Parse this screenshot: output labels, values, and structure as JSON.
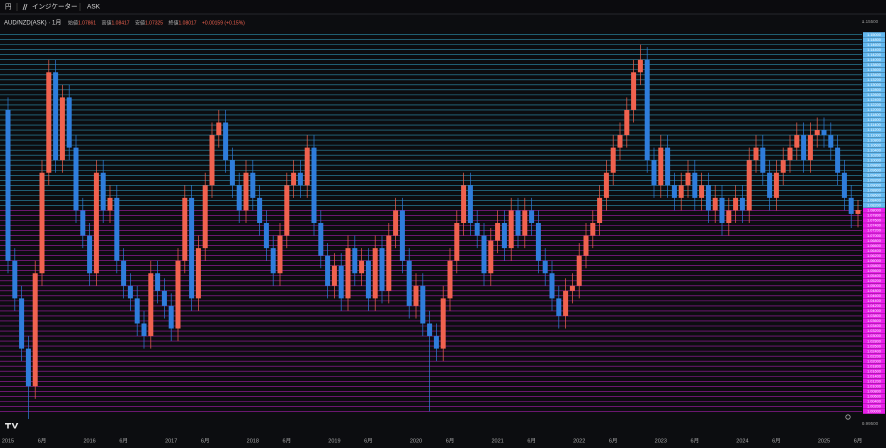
{
  "toolbar": {
    "currency": "円",
    "indicators": "インジケーター",
    "price_type": "ASK"
  },
  "chart_data": {
    "type": "candlestick",
    "title": "AUD/NZD(ASK) · 1月",
    "ohlc_labels": [
      "始値",
      "高値",
      "安値",
      "終値"
    ],
    "change": "+0.00159 (+0.15%)",
    "up_color": "#f0624f",
    "down_color": "#2f7ddb",
    "line_color_above": "#2b8fae",
    "line_color_below": "#a21ea8",
    "label_color_above": "#62b8ef",
    "label_color_below": "#e81ee8",
    "categories": [
      "2015",
      null,
      null,
      null,
      null,
      "6月",
      null,
      null,
      null,
      null,
      null,
      null,
      "2016",
      null,
      null,
      null,
      null,
      "6月",
      null,
      null,
      null,
      null,
      null,
      null,
      "2017",
      null,
      null,
      null,
      null,
      "6月",
      null,
      null,
      null,
      null,
      null,
      null,
      "2018",
      null,
      null,
      null,
      null,
      "6月",
      null,
      null,
      null,
      null,
      null,
      null,
      "2019",
      null,
      null,
      null,
      null,
      "6月",
      null,
      null,
      null,
      null,
      null,
      null,
      "2020",
      null,
      null,
      null,
      null,
      "6月",
      null,
      null,
      null,
      null,
      null,
      null,
      "2021",
      null,
      null,
      null,
      null,
      "6月",
      null,
      null,
      null,
      null,
      null,
      null,
      "2022",
      null,
      null,
      null,
      null,
      "6月",
      null,
      null,
      null,
      null,
      null,
      null,
      "2023",
      null,
      null,
      null,
      null,
      "6月",
      null,
      null,
      null,
      null,
      null,
      null,
      "2024",
      null,
      null,
      null,
      null,
      "6月",
      null,
      null,
      null,
      null,
      null,
      null,
      "2025",
      null,
      null,
      null,
      null,
      "6月"
    ],
    "series": {
      "open": [
        1.12,
        1.06,
        1.045,
        1.025,
        1.01,
        1.055,
        1.095,
        1.135,
        1.1,
        1.125,
        1.105,
        1.08,
        1.07,
        1.055,
        1.095,
        1.08,
        1.085,
        1.06,
        1.05,
        1.045,
        1.035,
        1.03,
        1.055,
        1.048,
        1.042,
        1.033,
        1.06,
        1.085,
        1.045,
        1.065,
        1.09,
        1.11,
        1.115,
        1.1,
        1.09,
        1.08,
        1.095,
        1.085,
        1.075,
        1.065,
        1.055,
        1.07,
        1.09,
        1.095,
        1.09,
        1.105,
        1.075,
        1.062,
        1.05,
        1.058,
        1.045,
        1.065,
        1.055,
        1.06,
        1.045,
        1.065,
        1.048,
        1.07,
        1.08,
        1.06,
        1.042,
        1.05,
        1.035,
        1.03,
        1.025,
        1.045,
        1.06,
        1.075,
        1.09,
        1.075,
        1.07,
        1.055,
        1.068,
        1.075,
        1.065,
        1.08,
        1.07,
        1.08,
        1.075,
        1.06,
        1.055,
        1.045,
        1.038,
        1.048,
        1.05,
        1.062,
        1.07,
        1.075,
        1.085,
        1.095,
        1.105,
        1.11,
        1.12,
        1.135,
        1.14,
        1.1,
        1.09,
        1.105,
        1.09,
        1.085,
        1.09,
        1.095,
        1.085,
        1.09,
        1.08,
        1.085,
        1.075,
        1.08,
        1.085,
        1.08,
        1.1,
        1.105,
        1.095,
        1.085,
        1.095,
        1.1,
        1.105,
        1.11,
        1.1,
        1.11,
        1.112,
        1.11,
        1.105,
        1.095,
        1.085,
        1.07861
      ],
      "high": [
        1.125,
        1.065,
        1.05,
        1.03,
        1.06,
        1.1,
        1.14,
        1.14,
        1.13,
        1.13,
        1.11,
        1.085,
        1.075,
        1.1,
        1.1,
        1.09,
        1.09,
        1.065,
        1.055,
        1.05,
        1.04,
        1.06,
        1.06,
        1.053,
        1.047,
        1.065,
        1.09,
        1.09,
        1.07,
        1.095,
        1.115,
        1.12,
        1.12,
        1.105,
        1.095,
        1.1,
        1.1,
        1.09,
        1.08,
        1.07,
        1.075,
        1.095,
        1.1,
        1.1,
        1.11,
        1.11,
        1.08,
        1.067,
        1.063,
        1.063,
        1.07,
        1.07,
        1.065,
        1.065,
        1.07,
        1.07,
        1.075,
        1.085,
        1.085,
        1.065,
        1.055,
        1.055,
        1.04,
        1.035,
        1.05,
        1.065,
        1.08,
        1.095,
        1.095,
        1.08,
        1.075,
        1.073,
        1.08,
        1.08,
        1.085,
        1.085,
        1.085,
        1.085,
        1.08,
        1.065,
        1.06,
        1.05,
        1.053,
        1.055,
        1.067,
        1.075,
        1.08,
        1.09,
        1.1,
        1.11,
        1.115,
        1.125,
        1.14,
        1.146,
        1.145,
        1.105,
        1.11,
        1.11,
        1.095,
        1.095,
        1.1,
        1.1,
        1.095,
        1.095,
        1.09,
        1.09,
        1.085,
        1.09,
        1.09,
        1.105,
        1.11,
        1.11,
        1.1,
        1.1,
        1.105,
        1.11,
        1.115,
        1.115,
        1.115,
        1.117,
        1.117,
        1.115,
        1.11,
        1.1,
        1.09,
        1.08417
      ],
      "low": [
        1.055,
        1.04,
        1.02,
        0.997,
        1.005,
        1.05,
        1.09,
        1.095,
        1.095,
        1.1,
        1.075,
        1.065,
        1.05,
        1.05,
        1.075,
        1.075,
        1.055,
        1.045,
        1.04,
        1.03,
        1.025,
        1.025,
        1.043,
        1.037,
        1.028,
        1.028,
        1.055,
        1.04,
        1.04,
        1.06,
        1.085,
        1.105,
        1.095,
        1.085,
        1.075,
        1.075,
        1.08,
        1.07,
        1.06,
        1.05,
        1.05,
        1.065,
        1.085,
        1.085,
        1.085,
        1.07,
        1.057,
        1.045,
        1.045,
        1.04,
        1.04,
        1.05,
        1.05,
        1.04,
        1.04,
        1.043,
        1.043,
        1.065,
        1.055,
        1.037,
        1.037,
        1.03,
        1.0,
        1.02,
        1.02,
        1.04,
        1.055,
        1.07,
        1.07,
        1.065,
        1.05,
        1.05,
        1.063,
        1.06,
        1.06,
        1.065,
        1.065,
        1.07,
        1.055,
        1.05,
        1.04,
        1.033,
        1.033,
        1.043,
        1.045,
        1.057,
        1.065,
        1.07,
        1.08,
        1.09,
        1.1,
        1.105,
        1.115,
        1.13,
        1.095,
        1.085,
        1.085,
        1.085,
        1.08,
        1.08,
        1.085,
        1.08,
        1.08,
        1.075,
        1.075,
        1.07,
        1.07,
        1.075,
        1.075,
        1.075,
        1.095,
        1.09,
        1.08,
        1.08,
        1.09,
        1.095,
        1.1,
        1.095,
        1.095,
        1.105,
        1.105,
        1.1,
        1.09,
        1.08,
        1.073,
        1.07325
      ],
      "close": [
        1.06,
        1.045,
        1.025,
        1.01,
        1.055,
        1.095,
        1.135,
        1.1,
        1.125,
        1.105,
        1.08,
        1.07,
        1.055,
        1.095,
        1.08,
        1.085,
        1.06,
        1.05,
        1.045,
        1.035,
        1.03,
        1.055,
        1.048,
        1.042,
        1.033,
        1.06,
        1.085,
        1.045,
        1.065,
        1.09,
        1.11,
        1.115,
        1.1,
        1.09,
        1.08,
        1.095,
        1.085,
        1.075,
        1.065,
        1.055,
        1.07,
        1.09,
        1.095,
        1.09,
        1.105,
        1.075,
        1.062,
        1.05,
        1.058,
        1.045,
        1.065,
        1.055,
        1.06,
        1.045,
        1.065,
        1.048,
        1.07,
        1.08,
        1.06,
        1.042,
        1.05,
        1.035,
        1.03,
        1.025,
        1.045,
        1.06,
        1.075,
        1.09,
        1.075,
        1.07,
        1.055,
        1.068,
        1.075,
        1.065,
        1.08,
        1.07,
        1.08,
        1.075,
        1.06,
        1.055,
        1.045,
        1.038,
        1.048,
        1.05,
        1.062,
        1.07,
        1.075,
        1.085,
        1.095,
        1.105,
        1.11,
        1.12,
        1.135,
        1.14,
        1.1,
        1.09,
        1.105,
        1.09,
        1.085,
        1.09,
        1.095,
        1.085,
        1.09,
        1.08,
        1.085,
        1.075,
        1.08,
        1.085,
        1.08,
        1.1,
        1.105,
        1.095,
        1.085,
        1.095,
        1.1,
        1.105,
        1.11,
        1.1,
        1.11,
        1.112,
        1.11,
        1.105,
        1.095,
        1.085,
        1.07861,
        1.08017
      ]
    },
    "ylim": [
      0.993,
      1.157
    ],
    "yticks": [
      {
        "value": 0.995,
        "label": "0.99500"
      },
      {
        "value": 1.155,
        "label": "1.15500"
      }
    ],
    "price_lines": [
      {
        "value": 1.15,
        "label": "1.15000"
      },
      {
        "value": 1.148,
        "label": "1.14800"
      },
      {
        "value": 1.146,
        "label": "1.14600"
      },
      {
        "value": 1.144,
        "label": "1.14400"
      },
      {
        "value": 1.142,
        "label": "1.14200"
      },
      {
        "value": 1.14,
        "label": "1.14000"
      },
      {
        "value": 1.138,
        "label": "1.13800"
      },
      {
        "value": 1.136,
        "label": "1.13600"
      },
      {
        "value": 1.134,
        "label": "1.13400"
      },
      {
        "value": 1.132,
        "label": "1.13200"
      },
      {
        "value": 1.13,
        "label": "1.13000"
      },
      {
        "value": 1.128,
        "label": "1.12800"
      },
      {
        "value": 1.126,
        "label": "1.12600"
      },
      {
        "value": 1.124,
        "label": "1.12400"
      },
      {
        "value": 1.122,
        "label": "1.12200"
      },
      {
        "value": 1.12,
        "label": "1.12000"
      },
      {
        "value": 1.118,
        "label": "1.11800"
      },
      {
        "value": 1.116,
        "label": "1.11600"
      },
      {
        "value": 1.114,
        "label": "1.11400"
      },
      {
        "value": 1.112,
        "label": "1.11200"
      },
      {
        "value": 1.11,
        "label": "1.11000"
      },
      {
        "value": 1.108,
        "label": "1.10800"
      },
      {
        "value": 1.106,
        "label": "1.10600"
      },
      {
        "value": 1.104,
        "label": "1.10400"
      },
      {
        "value": 1.102,
        "label": "1.10200"
      },
      {
        "value": 1.1,
        "label": "1.10000"
      },
      {
        "value": 1.098,
        "label": "1.09800"
      },
      {
        "value": 1.096,
        "label": "1.09600"
      },
      {
        "value": 1.094,
        "label": "1.09400"
      },
      {
        "value": 1.092,
        "label": "1.09200"
      },
      {
        "value": 1.09,
        "label": "1.09000"
      },
      {
        "value": 1.088,
        "label": "1.08800"
      },
      {
        "value": 1.086,
        "label": "1.08600"
      },
      {
        "value": 1.084,
        "label": "1.08400"
      },
      {
        "value": 1.082,
        "label": "1.08200"
      },
      {
        "value": 1.08,
        "label": "1.08000"
      },
      {
        "value": 1.078,
        "label": "1.07800"
      },
      {
        "value": 1.076,
        "label": "1.07600"
      },
      {
        "value": 1.074,
        "label": "1.07400"
      },
      {
        "value": 1.072,
        "label": "1.07200"
      },
      {
        "value": 1.07,
        "label": "1.07000"
      },
      {
        "value": 1.068,
        "label": "1.06800"
      },
      {
        "value": 1.066,
        "label": "1.06600"
      },
      {
        "value": 1.064,
        "label": "1.06400"
      },
      {
        "value": 1.062,
        "label": "1.06200"
      },
      {
        "value": 1.06,
        "label": "1.06000"
      },
      {
        "value": 1.058,
        "label": "1.05800"
      },
      {
        "value": 1.056,
        "label": "1.05600"
      },
      {
        "value": 1.054,
        "label": "1.05400"
      },
      {
        "value": 1.052,
        "label": "1.05200"
      },
      {
        "value": 1.05,
        "label": "1.05000"
      },
      {
        "value": 1.048,
        "label": "1.04800"
      },
      {
        "value": 1.046,
        "label": "1.04600"
      },
      {
        "value": 1.044,
        "label": "1.04400"
      },
      {
        "value": 1.042,
        "label": "1.04200"
      },
      {
        "value": 1.04,
        "label": "1.04000"
      },
      {
        "value": 1.038,
        "label": "1.03800"
      },
      {
        "value": 1.036,
        "label": "1.03600"
      },
      {
        "value": 1.034,
        "label": "1.03400"
      },
      {
        "value": 1.032,
        "label": "1.03200"
      },
      {
        "value": 1.03,
        "label": "1.03000"
      },
      {
        "value": 1.028,
        "label": "1.02800"
      },
      {
        "value": 1.026,
        "label": "1.02600"
      },
      {
        "value": 1.024,
        "label": "1.02400"
      },
      {
        "value": 1.022,
        "label": "1.02200"
      },
      {
        "value": 1.02,
        "label": "1.02000"
      },
      {
        "value": 1.018,
        "label": "1.01800"
      },
      {
        "value": 1.016,
        "label": "1.01600"
      },
      {
        "value": 1.014,
        "label": "1.01400"
      },
      {
        "value": 1.012,
        "label": "1.01200"
      },
      {
        "value": 1.01,
        "label": "1.01000"
      },
      {
        "value": 1.008,
        "label": "1.00800"
      },
      {
        "value": 1.006,
        "label": "1.00600"
      },
      {
        "value": 1.004,
        "label": "1.00400"
      },
      {
        "value": 1.002,
        "label": "1.00200"
      },
      {
        "value": 1.0,
        "label": "1.00000"
      }
    ]
  }
}
